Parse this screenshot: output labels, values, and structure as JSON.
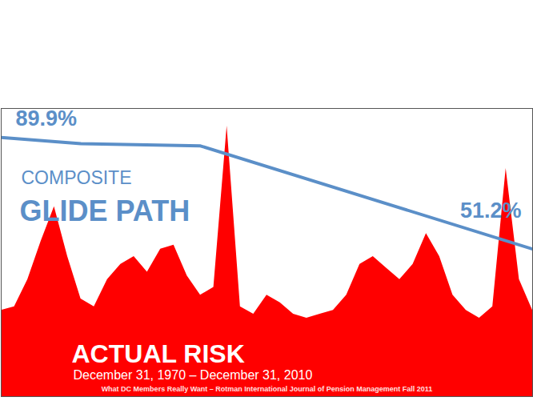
{
  "chart_data": {
    "type": "line",
    "subtitle": "December 31, 1970 – December 31, 2010",
    "caption": "What DC Members Really Want – Rotman International Journal of Pension Management Fall 2011",
    "xlim": [
      "1970-12-31",
      "2010-12-31"
    ],
    "ylim": [
      0,
      100
    ],
    "tick_labels": false,
    "grid": false,
    "data_labels": true,
    "series": [
      {
        "name": "ACTUAL RISK",
        "type": "area",
        "color": "#ff0000",
        "x": [
          "1970-12-31",
          "1971-12-31",
          "1972-12-31",
          "1973-12-31",
          "1974-12-31",
          "1975-12-31",
          "1976-12-31",
          "1977-12-31",
          "1978-12-31",
          "1979-12-31",
          "1980-12-31",
          "1981-12-31",
          "1982-12-31",
          "1983-12-31",
          "1984-12-31",
          "1985-12-31",
          "1986-12-31",
          "1987-12-31",
          "1988-12-31",
          "1989-12-31",
          "1990-12-31",
          "1991-12-31",
          "1992-12-31",
          "1993-12-31",
          "1994-12-31",
          "1995-12-31",
          "1996-12-31",
          "1997-12-31",
          "1998-12-31",
          "1999-12-31",
          "2000-12-31",
          "2001-12-31",
          "2002-12-31",
          "2003-12-31",
          "2004-12-31",
          "2005-12-31",
          "2006-12-31",
          "2007-12-31",
          "2008-12-31",
          "2009-12-31",
          "2010-12-31"
        ],
        "values": [
          29.9,
          31.2,
          40.6,
          53.9,
          65.9,
          48.6,
          33.9,
          31.2,
          40.6,
          45.9,
          48.6,
          43.2,
          51.2,
          52.6,
          41.9,
          35.2,
          37.9,
          93.9,
          31.2,
          28.6,
          35.2,
          32.6,
          28.6,
          27.2,
          28.6,
          29.9,
          35.2,
          45.9,
          48.6,
          44.6,
          40.6,
          45.9,
          56.6,
          48.6,
          35.2,
          29.9,
          27.2,
          31.2,
          79.2,
          40.6,
          29.9
        ]
      },
      {
        "name": "COMPOSITE GLIDE PATH",
        "type": "line",
        "color": "#5b8fc8",
        "x": [
          "1970-12-31",
          "1976-12-31",
          "1985-12-31",
          "2010-12-31"
        ],
        "values": [
          89.9,
          87.8,
          87.0,
          51.2
        ],
        "value_labels": [
          "89.9%",
          null,
          null,
          "51.2%"
        ]
      }
    ]
  }
}
